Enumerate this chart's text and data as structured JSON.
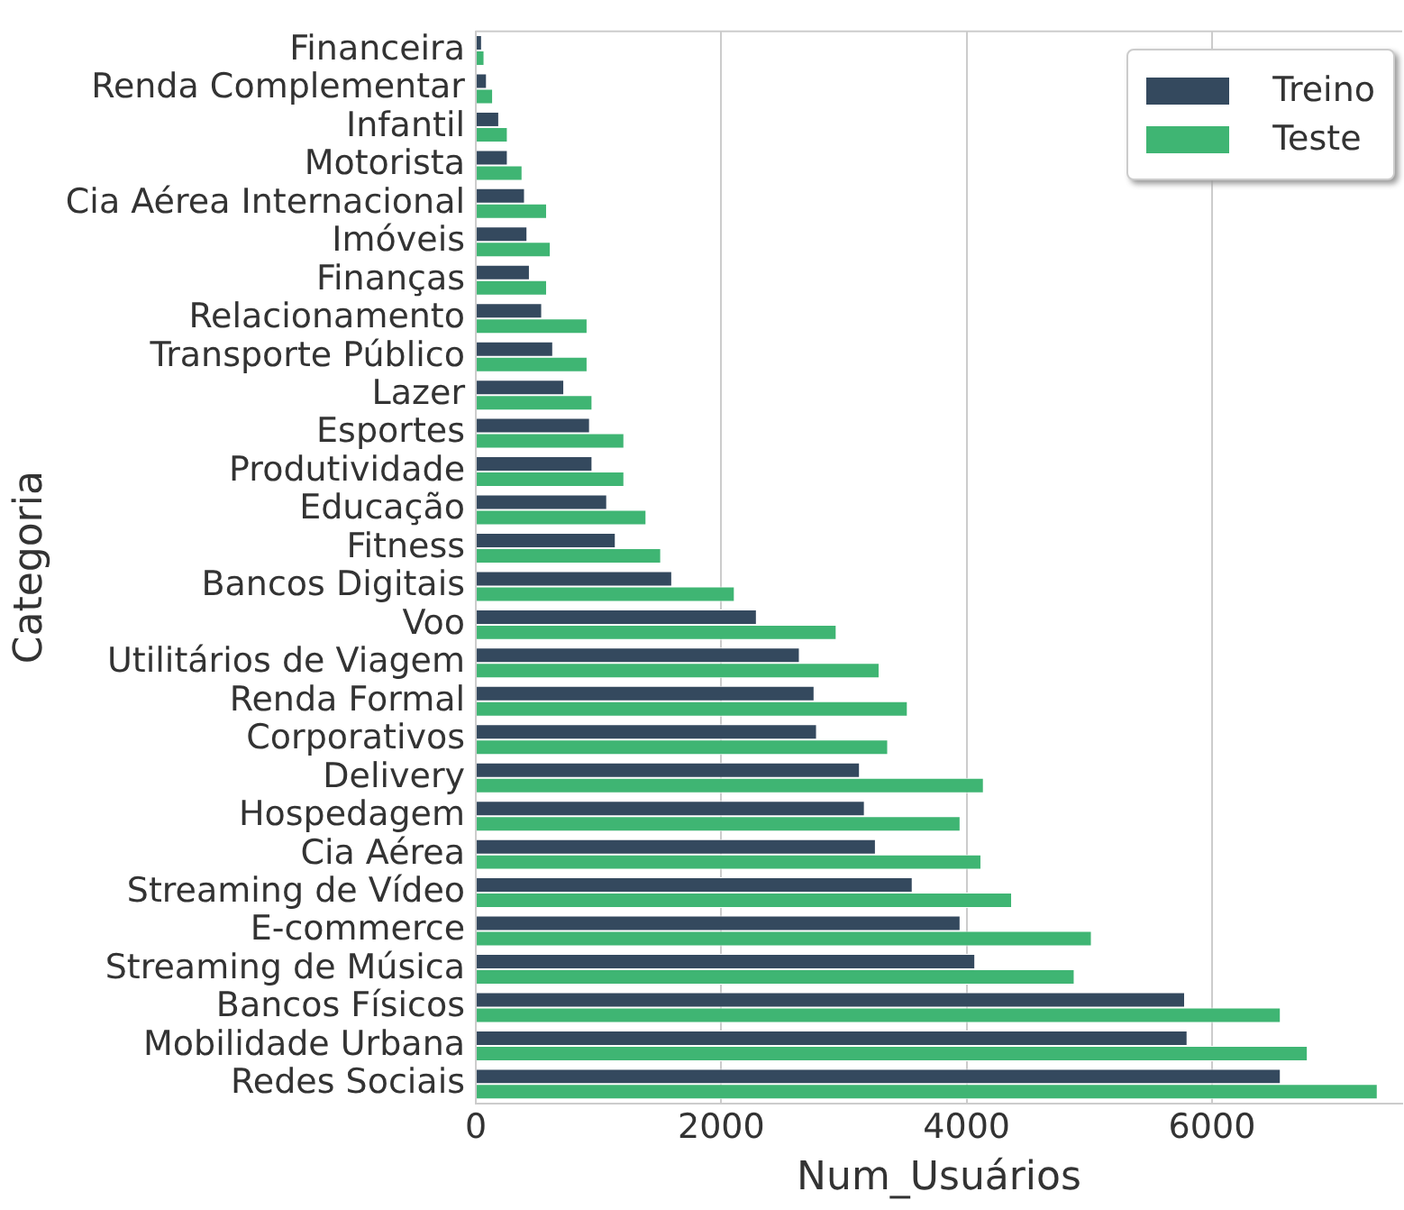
{
  "chart_data": {
    "type": "bar",
    "orientation": "horizontal",
    "xlabel": "Num_Usuários",
    "ylabel": "Categoria",
    "categories": [
      "Financeira",
      "Renda Complementar",
      "Infantil",
      "Motorista",
      "Cia Aérea Internacional",
      "Imóveis",
      "Finanças",
      "Relacionamento",
      "Transporte Público",
      "Lazer",
      "Esportes",
      "Produtividade",
      "Educação",
      "Fitness",
      "Bancos Digitais",
      "Voo",
      "Utilitários de Viagem",
      "Renda Formal",
      "Corporativos",
      "Delivery",
      "Hospedagem",
      "Cia Aérea",
      "Streaming de Vídeo",
      "E-commerce",
      "Streaming de Música",
      "Bancos Físicos",
      "Mobilidade Urbana",
      "Redes Sociais"
    ],
    "series": [
      {
        "name": "Treino",
        "color": "#34495e",
        "values": [
          50,
          90,
          190,
          260,
          400,
          420,
          440,
          540,
          630,
          720,
          930,
          950,
          1070,
          1140,
          1600,
          2290,
          2640,
          2760,
          2780,
          3130,
          3170,
          3260,
          3560,
          3950,
          4070,
          5780,
          5800,
          6560
        ]
      },
      {
        "name": "Teste",
        "color": "#3fb573",
        "values": [
          70,
          140,
          260,
          380,
          580,
          610,
          580,
          910,
          910,
          950,
          1210,
          1210,
          1390,
          1510,
          2110,
          2940,
          3290,
          3520,
          3360,
          4140,
          3950,
          4120,
          4370,
          5020,
          4880,
          6560,
          6780,
          7350
        ]
      }
    ],
    "xlim": [
      0,
      7550
    ],
    "xticks": [
      0,
      2000,
      4000,
      6000
    ],
    "grid": "x",
    "legend": "top right"
  }
}
